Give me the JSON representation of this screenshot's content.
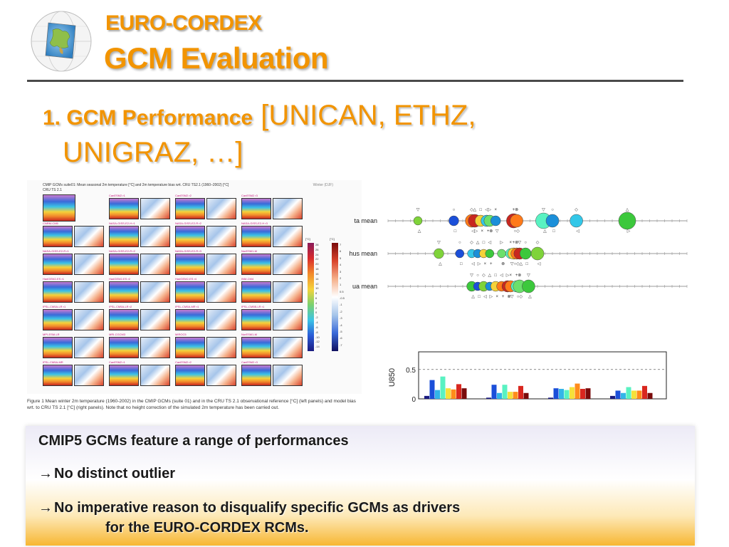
{
  "header": {
    "title_line1": "EURO-CORDEX",
    "title_line2": "GCM Evaluation"
  },
  "heading": {
    "bold_part": "1. GCM Performance",
    "normal_part": "[UNICAN, ETHZ,",
    "line2": "UNIGRAZ, …]"
  },
  "figure_left": {
    "header_text": "CMIP GCMs suite01: Mean seasonal 2m temperature [°C] and 2m temperature bias wrt. CRU TS2.1 (1960–2002) [°C]",
    "reference_label": "CRU TS 2.1",
    "season_label": "Winter (DJF)",
    "panel_labels": [
      "CanESM2 r1",
      "CanESM2 r2",
      "CanESM2 r3",
      "CNRM-CM5",
      "NASA-GISS-E2-H r1",
      "NASA-GISS-E2-R r2",
      "NASA-GISS-E2-H r3",
      "NASA-GISS-E2-R r1",
      "NASA-GISS-E2-R r2",
      "NASA-GISS-E2-R r3",
      "NorESM1-M",
      "HadGEM2-ES r1",
      "HadGEM2-ES r2",
      "HadGEM2-ES r4",
      "INM-CM4",
      "IPSL-CM5A-LR r1",
      "IPSL-CM5A-LR r2",
      "IPSL-CM5A-MR r1",
      "IPSL-CM5B-LR r1",
      "MPI-ESM-LR",
      "MRI-CGCM3",
      "MIROC5",
      "NorESM1-M",
      "IPSL-CM5A-MR"
    ],
    "colorbar1_label": "[°C]",
    "colorbar2_label": "[°C]",
    "colorbar1_ticks": [
      "28",
      "26",
      "24",
      "22",
      "20",
      "18",
      "16",
      "14",
      "12",
      "10",
      "8",
      "6",
      "4",
      "2",
      "0",
      "-2",
      "-4",
      "-6",
      "-8",
      "-10",
      "-12",
      "-14"
    ],
    "colorbar2_ticks": [
      "7",
      "6",
      "5",
      "4",
      "3",
      "2",
      "1",
      "0.5",
      "-0.5",
      "-1",
      "-2",
      "-3",
      "-4",
      "-5",
      "-6",
      "-7"
    ],
    "caption": "Figure 1  Mean winter 2m temperature (1960-2002) in the CMIP GCMs (suite 01) and in the CRU TS 2.1 observational reference [°C] (left panels) and model bias wrt. to CRU TS 2.1 [°C] (right panels). Note that no height correction of the simulated 2m temperature has been carried out."
  },
  "chart_data": [
    {
      "type": "scatter",
      "title": "",
      "rows": [
        {
          "name": "ta mean",
          "points": [
            {
              "x": 0.1,
              "size": 6,
              "color": "#7fd33a"
            },
            {
              "x": 0.22,
              "size": 7,
              "color": "#1b4fd9"
            },
            {
              "x": 0.28,
              "size": 9,
              "color": "#ff7a1a"
            },
            {
              "x": 0.29,
              "size": 9,
              "color": "#c8271f"
            },
            {
              "x": 0.31,
              "size": 8,
              "color": "#f5d23a"
            },
            {
              "x": 0.33,
              "size": 8,
              "color": "#33c7e8"
            },
            {
              "x": 0.34,
              "size": 8,
              "color": "#6be06b"
            },
            {
              "x": 0.36,
              "size": 7,
              "color": "#1b8fd9"
            },
            {
              "x": 0.42,
              "size": 10,
              "color": "#c8271f"
            },
            {
              "x": 0.43,
              "size": 9,
              "color": "#ff7a1a"
            },
            {
              "x": 0.52,
              "size": 11,
              "color": "#59f2c2"
            },
            {
              "x": 0.55,
              "size": 9,
              "color": "#1b8fd9"
            },
            {
              "x": 0.63,
              "size": 9,
              "color": "#33c7e8"
            },
            {
              "x": 0.8,
              "size": 12,
              "color": "#3cc83c"
            }
          ]
        },
        {
          "name": "hus mean",
          "points": [
            {
              "x": 0.17,
              "size": 7,
              "color": "#7fd33a"
            },
            {
              "x": 0.24,
              "size": 6,
              "color": "#1b4fd9"
            },
            {
              "x": 0.28,
              "size": 6,
              "color": "#33c7e8"
            },
            {
              "x": 0.3,
              "size": 6,
              "color": "#1b8fd9"
            },
            {
              "x": 0.32,
              "size": 6,
              "color": "#f5d23a"
            },
            {
              "x": 0.34,
              "size": 6,
              "color": "#3cc83c"
            },
            {
              "x": 0.38,
              "size": 6,
              "color": "#6be06b"
            },
            {
              "x": 0.41,
              "size": 7,
              "color": "#59f2c2"
            },
            {
              "x": 0.42,
              "size": 8,
              "color": "#f5d23a"
            },
            {
              "x": 0.43,
              "size": 8,
              "color": "#ff7a1a"
            },
            {
              "x": 0.44,
              "size": 8,
              "color": "#c8271f"
            },
            {
              "x": 0.46,
              "size": 8,
              "color": "#3cc83c"
            },
            {
              "x": 0.5,
              "size": 9,
              "color": "#7fd33a"
            }
          ]
        },
        {
          "name": "ua mean",
          "points": [
            {
              "x": 0.28,
              "size": 7,
              "color": "#3cc83c"
            },
            {
              "x": 0.3,
              "size": 6,
              "color": "#1b4fd9"
            },
            {
              "x": 0.32,
              "size": 7,
              "color": "#7fd33a"
            },
            {
              "x": 0.34,
              "size": 6,
              "color": "#1b8fd9"
            },
            {
              "x": 0.36,
              "size": 7,
              "color": "#f5d23a"
            },
            {
              "x": 0.38,
              "size": 7,
              "color": "#ff7a1a"
            },
            {
              "x": 0.4,
              "size": 8,
              "color": "#c8271f"
            },
            {
              "x": 0.41,
              "size": 8,
              "color": "#ff7a1a"
            },
            {
              "x": 0.43,
              "size": 8,
              "color": "#59f2c2"
            },
            {
              "x": 0.44,
              "size": 9,
              "color": "#6be06b"
            },
            {
              "x": 0.47,
              "size": 9,
              "color": "#3cc83c"
            }
          ]
        }
      ]
    },
    {
      "type": "bar",
      "ylabel": "U850",
      "yticks": [
        "0.5",
        "0"
      ],
      "ylim": [
        0,
        0.8
      ],
      "reference_line": 0.5,
      "groups": [
        {
          "values": [
            0.05,
            0.32,
            0.15,
            0.38,
            0.18,
            0.16,
            0.25,
            0.18
          ]
        },
        {
          "values": [
            0.02,
            0.24,
            0.1,
            0.24,
            0.12,
            0.12,
            0.22,
            0.1
          ]
        },
        {
          "values": [
            0.02,
            0.18,
            0.17,
            0.15,
            0.2,
            0.26,
            0.17,
            0.18
          ]
        },
        {
          "values": [
            0.05,
            0.14,
            0.1,
            0.2,
            0.14,
            0.14,
            0.22,
            0.1
          ]
        }
      ],
      "colors": [
        "#1b1b80",
        "#1b4fd9",
        "#33b5e8",
        "#59f2c2",
        "#f5e13a",
        "#ff8c1a",
        "#d9271f",
        "#7a0b0b"
      ]
    }
  ],
  "summary": {
    "line1": "CMIP5 GCMs feature a range of performances",
    "line2_arrow": "→",
    "line2": "No distinct  outlier",
    "line3_arrow": "→",
    "line3": "No imperative reason to disqualify specific GCMs as drivers",
    "line4": "for the EURO-CORDEX RCMs."
  }
}
